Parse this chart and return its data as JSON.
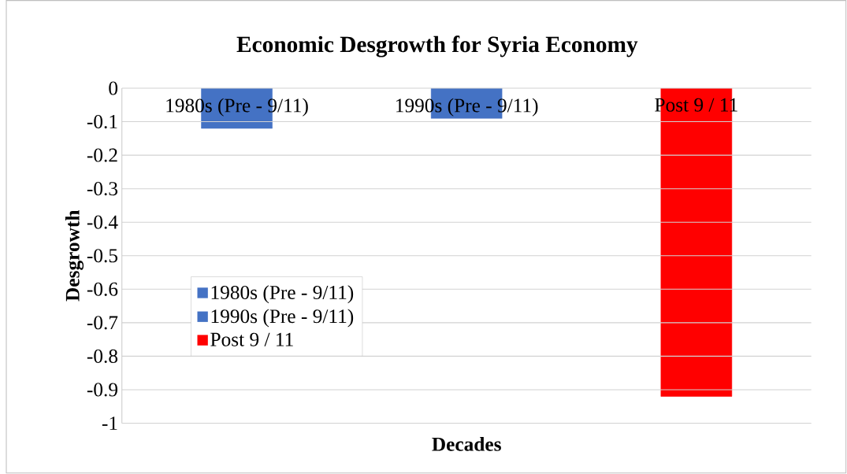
{
  "chart_data": {
    "type": "bar",
    "title": "Economic Desgrowth for Syria Economy",
    "xlabel": "Decades",
    "ylabel": "Desgrowth",
    "categories": [
      "1980s (Pre - 9/11)",
      "1990s (Pre - 9/11)",
      "Post 9 / 11"
    ],
    "series": [
      {
        "name": "1980s (Pre - 9/11)",
        "color": "#4472c4",
        "values": [
          -0.12,
          null,
          null
        ]
      },
      {
        "name": "1990s (Pre - 9/11)",
        "color": "#4472c4",
        "values": [
          null,
          -0.09,
          null
        ]
      },
      {
        "name": "Post 9 / 11",
        "color": "#ff0000",
        "values": [
          null,
          null,
          -0.92
        ]
      }
    ],
    "ylim": [
      -1,
      0
    ],
    "yticks": [
      0,
      -0.1,
      -0.2,
      -0.3,
      -0.4,
      -0.5,
      -0.6,
      -0.7,
      -0.8,
      -0.9,
      -1
    ],
    "grid": "y",
    "legend": "left"
  }
}
